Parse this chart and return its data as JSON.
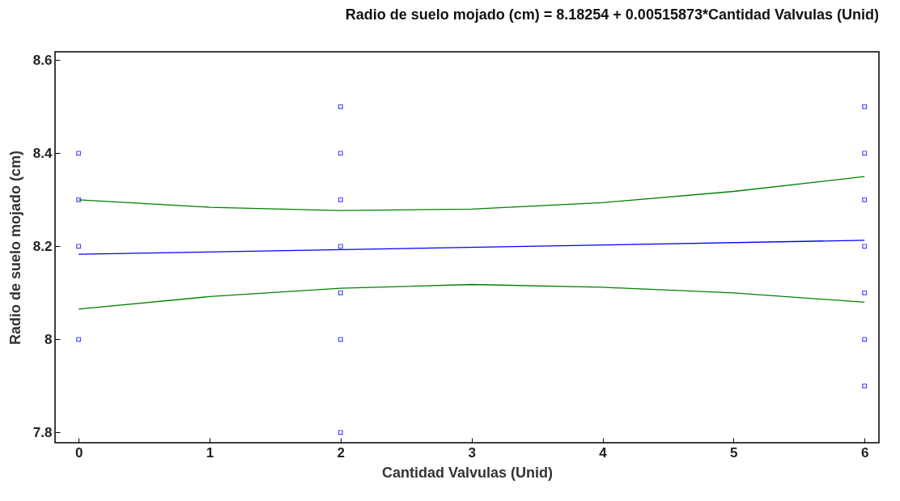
{
  "chart_data": {
    "type": "scatter",
    "title": "Radio de suelo mojado (cm) = 8.18254 + 0.00515873*Cantidad Valvulas (Unid)",
    "xlabel": "Cantidad Valvulas (Unid)",
    "ylabel": "Radio de suelo mojado (cm)",
    "xlim": [
      -0.18,
      6.11
    ],
    "xticks": [
      0,
      1,
      2,
      3,
      4,
      5,
      6
    ],
    "ylim": [
      7.778,
      8.618
    ],
    "yticks": [
      7.8,
      8,
      8.2,
      8.4,
      8.6
    ],
    "grid": false,
    "series": [
      {
        "marker": "square",
        "color": "#0000ff",
        "x": [
          0,
          0,
          0,
          0,
          2,
          2,
          2,
          2,
          2,
          2,
          2,
          6,
          6,
          6,
          6,
          6,
          6,
          6
        ],
        "values": [
          8.4,
          8.3,
          8.2,
          8.0,
          8.5,
          8.4,
          8.3,
          8.2,
          8.1,
          8.0,
          7.8,
          8.5,
          8.4,
          8.3,
          8.2,
          8.1,
          8.0,
          7.9
        ]
      },
      {
        "type": "line",
        "color": "#0000ff",
        "x": [
          0,
          6
        ],
        "values": [
          8.183,
          8.213
        ]
      },
      {
        "type": "line",
        "color": "#008000",
        "x": [
          0,
          1,
          2,
          3,
          4,
          5,
          6
        ],
        "values": [
          8.3,
          8.284,
          8.277,
          8.28,
          8.294,
          8.318,
          8.35
        ]
      },
      {
        "type": "line",
        "color": "#008000",
        "x": [
          0,
          1,
          2,
          3,
          4,
          5,
          6
        ],
        "values": [
          8.065,
          8.092,
          8.11,
          8.118,
          8.112,
          8.1,
          8.08
        ]
      }
    ]
  }
}
